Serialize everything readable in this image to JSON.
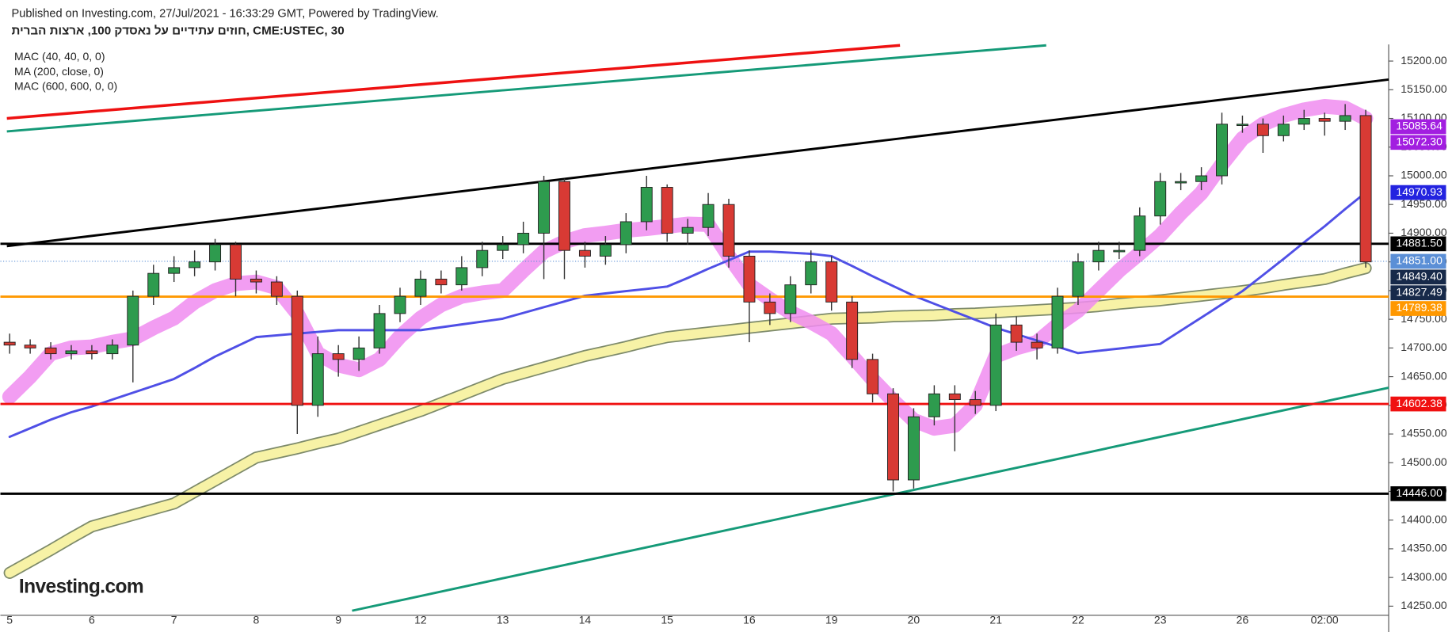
{
  "chart_data": {
    "type": "candlestick",
    "publisher": "Published on Investing.com, 27/Jul/2021 - 16:33:29 GMT, Powered by TradingView.",
    "title": "חוזים עתידיים על נאסדק 100, ארצות הברית, CME:USTEC, 30",
    "logo": "Investing.com",
    "categories": [
      "5",
      null,
      null,
      null,
      "6",
      null,
      null,
      null,
      "7",
      null,
      null,
      null,
      "8",
      null,
      null,
      null,
      "9",
      null,
      null,
      null,
      "12",
      null,
      null,
      null,
      "13",
      null,
      null,
      null,
      "14",
      null,
      null,
      null,
      "15",
      null,
      null,
      null,
      "16",
      null,
      null,
      null,
      "19",
      null,
      null,
      null,
      "20",
      null,
      null,
      null,
      "21",
      null,
      null,
      null,
      "22",
      null,
      null,
      null,
      "23",
      null,
      null,
      null,
      "26",
      null,
      null,
      null,
      "02:00",
      null,
      null
    ],
    "open": [
      14710,
      14705,
      14700,
      14690,
      14695,
      14690,
      14705,
      14790,
      14830,
      14840,
      14850,
      14880,
      14820,
      14815,
      14790,
      14600,
      14690,
      14680,
      14700,
      14760,
      14790,
      14820,
      14810,
      14840,
      14870,
      14880,
      14900,
      14990,
      14870,
      14860,
      14880,
      14920,
      14980,
      14900,
      14910,
      14950,
      14860,
      14780,
      14760,
      14810,
      14850,
      14780,
      14680,
      14620,
      14470,
      14580,
      14620,
      14610,
      14600,
      14740,
      14710,
      14700,
      14790,
      14850,
      14870,
      14870,
      14930,
      14990,
      14990,
      15000,
      15090,
      15090,
      15070,
      15090,
      15100,
      15095,
      15105
    ],
    "high": [
      14725,
      14715,
      14710,
      14705,
      14705,
      14715,
      14800,
      14845,
      14860,
      14870,
      14890,
      14885,
      14835,
      14825,
      14800,
      14720,
      14705,
      14720,
      14775,
      14805,
      14835,
      14835,
      14860,
      14885,
      14895,
      14920,
      15000,
      14995,
      14885,
      14895,
      14935,
      15000,
      14985,
      14925,
      14970,
      14960,
      14870,
      14795,
      14825,
      14870,
      14860,
      14790,
      14690,
      14630,
      14595,
      14635,
      14635,
      14625,
      14760,
      14755,
      14725,
      14805,
      14865,
      14885,
      14885,
      14945,
      15005,
      15005,
      15015,
      15110,
      15105,
      15100,
      15105,
      15115,
      15110,
      15125,
      15115
    ],
    "low": [
      14690,
      14690,
      14680,
      14680,
      14680,
      14680,
      14640,
      14775,
      14815,
      14825,
      14835,
      14790,
      14795,
      14775,
      14550,
      14580,
      14650,
      14660,
      14690,
      14745,
      14775,
      14795,
      14800,
      14825,
      14855,
      14865,
      14820,
      14820,
      14840,
      14845,
      14865,
      14905,
      14885,
      14880,
      14895,
      14840,
      14710,
      14740,
      14745,
      14795,
      14765,
      14665,
      14605,
      14450,
      14455,
      14565,
      14520,
      14585,
      14590,
      14695,
      14680,
      14690,
      14775,
      14835,
      14855,
      14860,
      14915,
      14975,
      14975,
      14985,
      15075,
      15040,
      15060,
      15080,
      15070,
      15080,
      14840
    ],
    "close": [
      14705,
      14700,
      14690,
      14695,
      14690,
      14705,
      14790,
      14830,
      14840,
      14850,
      14880,
      14820,
      14815,
      14790,
      14600,
      14690,
      14680,
      14700,
      14760,
      14790,
      14820,
      14810,
      14840,
      14870,
      14880,
      14900,
      14990,
      14870,
      14860,
      14880,
      14920,
      14980,
      14900,
      14910,
      14950,
      14860,
      14780,
      14760,
      14810,
      14850,
      14780,
      14680,
      14620,
      14470,
      14580,
      14620,
      14610,
      14600,
      14740,
      14710,
      14700,
      14790,
      14850,
      14870,
      14870,
      14930,
      14990,
      14990,
      15000,
      15090,
      15090,
      15070,
      15090,
      15100,
      15095,
      15105,
      14850
    ],
    "up_color": "#2e9b4e",
    "down_color": "#d83a34",
    "series": [
      {
        "name": "MAC (40, 40, 0, 0)",
        "color": "#f08cf0",
        "values": [
          14615,
          14650,
          14690,
          14700,
          14702,
          14710,
          14716,
          14735,
          14752,
          14780,
          14800,
          14812,
          14815,
          14805,
          14760,
          14690,
          14670,
          14662,
          14680,
          14720,
          14752,
          14775,
          14790,
          14796,
          14800,
          14835,
          14868,
          14885,
          14896,
          14900,
          14905,
          14908,
          14912,
          14916,
          14915,
          14860,
          14810,
          14785,
          14762,
          14745,
          14725,
          14686,
          14645,
          14608,
          14574,
          14560,
          14565,
          14600,
          14686,
          14700,
          14710,
          14740,
          14765,
          14800,
          14835,
          14865,
          14896,
          14935,
          14970,
          15020,
          15065,
          15090,
          15105,
          15115,
          15121,
          15118,
          15100
        ]
      },
      {
        "name": "MA (200, close, 0)",
        "color": "#4f4fe6",
        "values": [
          14545,
          14560,
          14575,
          14588,
          14598,
          14610,
          14622,
          14634,
          14646,
          14665,
          14685,
          14702,
          14719,
          14722,
          14725,
          14728,
          14731,
          14731,
          14731,
          14731,
          14731,
          14736,
          14741,
          14746,
          14751,
          14761,
          14771,
          14781,
          14791,
          14795,
          14799,
          14803,
          14807,
          14822,
          14838,
          14853,
          14868,
          14868,
          14866,
          14864,
          14860,
          14843,
          14825,
          14808,
          14791,
          14777,
          14763,
          14749,
          14735,
          14724,
          14713,
          14702,
          14691,
          14695,
          14699,
          14703,
          14707,
          14730,
          14753,
          14776,
          14799,
          14827,
          14855,
          14884,
          14912,
          14942,
          14971
        ]
      },
      {
        "name": "MAC (600, 600, 0, 0)",
        "color": "#f7f2a6",
        "values": [
          14308,
          14328,
          14348,
          14369,
          14389,
          14399,
          14409,
          14419,
          14429,
          14449,
          14469,
          14489,
          14509,
          14517,
          14525,
          14534,
          14542,
          14554,
          14566,
          14578,
          14590,
          14604,
          14618,
          14632,
          14646,
          14656,
          14666,
          14676,
          14686,
          14694,
          14702,
          14711,
          14719,
          14723,
          14727,
          14731,
          14735,
          14739,
          14743,
          14747,
          14751,
          14752,
          14753,
          14755,
          14756,
          14757,
          14759,
          14760,
          14762,
          14764,
          14766,
          14768,
          14770,
          14773,
          14777,
          14780,
          14783,
          14787,
          14791,
          14795,
          14799,
          14804,
          14810,
          14815,
          14820,
          14830,
          14839
        ]
      }
    ],
    "levels": [
      {
        "value": 15085.64,
        "label": "15085.64",
        "color": "#a21ee0",
        "style": "none"
      },
      {
        "value": 15072.3,
        "label": "15072.30",
        "color": "#a21ee0",
        "style": "none"
      },
      {
        "value": 14970.93,
        "label": "14970.93",
        "color": "#2323e0",
        "style": "none"
      },
      {
        "value": 14881.5,
        "label": "14881.50",
        "color": "#000000",
        "style": "solid"
      },
      {
        "value": 14851,
        "label": "14851.00",
        "color": "#5b8fd6",
        "style": "dotted"
      },
      {
        "value": 14849.4,
        "label": "14849.40",
        "color": "#172a4a",
        "style": "none"
      },
      {
        "value": 14827.49,
        "label": "14827.49",
        "color": "#172a4a",
        "style": "none"
      },
      {
        "value": 14789.38,
        "label": "14789.38",
        "color": "#ff9800",
        "style": "solid"
      },
      {
        "value": 14602.38,
        "label": "14602.38",
        "color": "#f01010",
        "style": "solid"
      },
      {
        "value": 14446,
        "label": "14446.00",
        "color": "#000000",
        "style": "solid"
      }
    ],
    "ylim": [
      14234,
      15229
    ],
    "yticks": [
      {
        "value": 14250,
        "label": "14250.00"
      },
      {
        "value": 14300,
        "label": "14300.00"
      },
      {
        "value": 14350,
        "label": "14350.00"
      },
      {
        "value": 14400,
        "label": "14400.00"
      },
      {
        "value": 14450,
        "label": "14450.00"
      },
      {
        "value": 14500,
        "label": "14500.00"
      },
      {
        "value": 14550,
        "label": "14550.00"
      },
      {
        "value": 14600,
        "label": "14600.00"
      },
      {
        "value": 14650,
        "label": "14650.00"
      },
      {
        "value": 14700,
        "label": "14700.00"
      },
      {
        "value": 14750,
        "label": "14750.00"
      },
      {
        "value": 14800,
        "label": "14800.00"
      },
      {
        "value": 14850,
        "label": "14850.00"
      },
      {
        "value": 14900,
        "label": "14900.00"
      },
      {
        "value": 14950,
        "label": "14950.00"
      },
      {
        "value": 15000,
        "label": "15000.00"
      },
      {
        "value": 15050,
        "label": "15050.00"
      },
      {
        "value": 15100,
        "label": "15100.00"
      },
      {
        "value": 15150,
        "label": "15150.00"
      },
      {
        "value": 15200,
        "label": "15200.00"
      }
    ]
  }
}
